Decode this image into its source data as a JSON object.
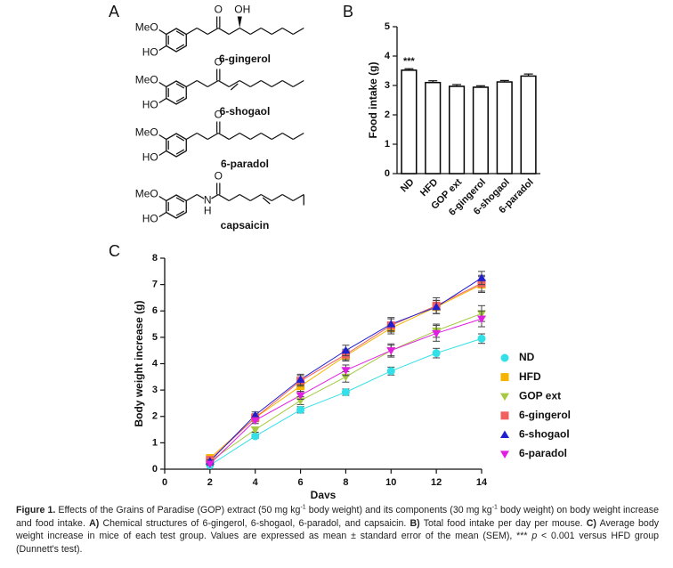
{
  "panels": [
    "A",
    "B",
    "C"
  ],
  "structures": [
    {
      "name": "6-gingerol",
      "atoms": [
        "MeO",
        "HO",
        "O",
        "OH"
      ]
    },
    {
      "name": "6-shogaol",
      "atoms": [
        "MeO",
        "HO",
        "O"
      ]
    },
    {
      "name": "6-paradol",
      "atoms": [
        "MeO",
        "HO",
        "O"
      ]
    },
    {
      "name": "capsaicin",
      "atoms": [
        "MeO",
        "HO",
        "O",
        "N",
        "H"
      ]
    }
  ],
  "chart_data": [
    {
      "type": "bar",
      "ylabel": "Food intake (g)",
      "categories": [
        "ND",
        "HFD",
        "GOP ext",
        "6-gingerol",
        "6-shogaol",
        "6-paradol"
      ],
      "values": [
        3.52,
        3.1,
        2.97,
        2.94,
        3.12,
        3.32
      ],
      "errors": [
        0.05,
        0.06,
        0.06,
        0.05,
        0.05,
        0.07
      ],
      "color": "#ffffff",
      "edgecolor": "#000000",
      "ylim": [
        0,
        5
      ],
      "yticks": [
        0,
        1,
        2,
        3,
        4,
        5
      ],
      "annotation": {
        "text": "***",
        "category": "ND"
      }
    },
    {
      "type": "line",
      "xlabel": "Days",
      "ylabel": "Body weight increase (g)",
      "x": [
        2,
        4,
        6,
        8,
        10,
        12,
        14
      ],
      "xlim": [
        0,
        14
      ],
      "xticks": [
        0,
        2,
        4,
        6,
        8,
        10,
        12,
        14
      ],
      "ylim": [
        0,
        8
      ],
      "yticks": [
        0,
        1,
        2,
        3,
        4,
        5,
        6,
        7,
        8
      ],
      "legend": "right",
      "series": [
        {
          "name": "ND",
          "color": "#33e0e8",
          "marker": "circle",
          "values": [
            0.15,
            1.25,
            2.25,
            2.92,
            3.72,
            4.4,
            4.95
          ],
          "errors": [
            0.05,
            0.08,
            0.12,
            0.12,
            0.15,
            0.18,
            0.18
          ]
        },
        {
          "name": "HFD",
          "color": "#f5b400",
          "marker": "square",
          "values": [
            0.42,
            1.95,
            3.15,
            4.3,
            5.35,
            6.15,
            7.0
          ],
          "errors": [
            0.05,
            0.15,
            0.2,
            0.2,
            0.22,
            0.25,
            0.3
          ]
        },
        {
          "name": "GOP ext",
          "color": "#a6c940",
          "marker": "triangle-down",
          "values": [
            0.3,
            1.5,
            2.6,
            3.5,
            4.5,
            5.25,
            5.9
          ],
          "errors": [
            0.05,
            0.1,
            0.15,
            0.2,
            0.2,
            0.25,
            0.3
          ]
        },
        {
          "name": "6-gingerol",
          "color": "#f0605f",
          "marker": "square",
          "values": [
            0.35,
            1.95,
            3.35,
            4.35,
            5.45,
            6.2,
            7.05
          ],
          "errors": [
            0.05,
            0.12,
            0.2,
            0.2,
            0.25,
            0.3,
            0.3
          ]
        },
        {
          "name": "6-shogaol",
          "color": "#1f1fd0",
          "marker": "triangle-up",
          "values": [
            0.3,
            2.05,
            3.4,
            4.5,
            5.5,
            6.15,
            7.25
          ],
          "errors": [
            0.05,
            0.12,
            0.2,
            0.2,
            0.25,
            0.25,
            0.25
          ]
        },
        {
          "name": "6-paradol",
          "color": "#e020e0",
          "marker": "triangle-down",
          "values": [
            0.2,
            1.85,
            2.8,
            3.75,
            4.5,
            5.15,
            5.7
          ],
          "errors": [
            0.05,
            0.12,
            0.15,
            0.2,
            0.25,
            0.3,
            0.3
          ]
        }
      ]
    }
  ],
  "caption": [
    {
      "text": "Figure 1.",
      "style": "bold"
    },
    {
      "text": " Effects of the Grains of Paradise (GOP) extract (50 mg kg"
    },
    {
      "text": "-1",
      "style": "sup"
    },
    {
      "text": " body weight) and its components (30 mg kg"
    },
    {
      "text": "-1",
      "style": "sup"
    },
    {
      "text": " body weight) on body weight increase and food intake. "
    },
    {
      "text": "A)",
      "style": "bold"
    },
    {
      "text": " Chemical structures of 6-gingerol, 6-shogaol, 6-paradol, and capsaicin. "
    },
    {
      "text": "B)",
      "style": "bold"
    },
    {
      "text": " Total food intake per day per mouse. "
    },
    {
      "text": "C)",
      "style": "bold"
    },
    {
      "text": " Average body weight increase in mice of each test group. Values are expressed as mean ± standard error of the mean (SEM), *** "
    },
    {
      "text": "p",
      "style": "italic"
    },
    {
      "text": " < 0.001 versus HFD group (Dunnett's test)."
    }
  ]
}
